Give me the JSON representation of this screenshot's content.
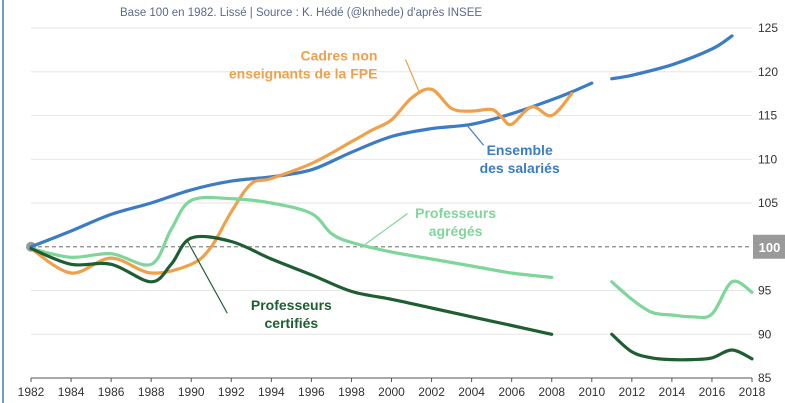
{
  "subtitle": "Base 100 en 1982. Lissé  |  Source : K. Hédé (@knhede) d'après INSEE",
  "colors": {
    "ensemble": "#3b7cc4",
    "cadres": "#f0a04b",
    "agreges": "#7fd69a",
    "certifies": "#1e5e32",
    "baseline": "#888888",
    "badge": "#9a9a9a"
  },
  "chart_data": {
    "type": "line",
    "title": "",
    "subtitle": "Base 100 en 1982. Lissé  |  Source : K. Hédé (@knhede) d'après INSEE",
    "xlabel": "",
    "ylabel": "",
    "xlim": [
      1982,
      2018
    ],
    "ylim": [
      85,
      125
    ],
    "x_ticks": [
      1982,
      1984,
      1986,
      1988,
      1990,
      1992,
      1994,
      1996,
      1998,
      2000,
      2002,
      2004,
      2006,
      2008,
      2010,
      2012,
      2014,
      2016,
      2018
    ],
    "y_ticks": [
      85,
      90,
      95,
      100,
      105,
      110,
      115,
      120,
      125
    ],
    "y_axis_side": "right",
    "baseline": {
      "value": 100,
      "label": "100"
    },
    "series": [
      {
        "name": "Ensemble des salariés",
        "label_lines": [
          "Ensemble",
          "des salariés"
        ],
        "segments": [
          [
            [
              1982,
              100
            ],
            [
              1984,
              101.8
            ],
            [
              1986,
              103.7
            ],
            [
              1988,
              105
            ],
            [
              1990,
              106.5
            ],
            [
              1992,
              107.5
            ],
            [
              1994,
              108
            ],
            [
              1996,
              108.8
            ],
            [
              1998,
              110.8
            ],
            [
              2000,
              112.6
            ],
            [
              2002,
              113.5
            ],
            [
              2004,
              114
            ],
            [
              2006,
              115.2
            ],
            [
              2008,
              116.8
            ],
            [
              2009,
              117.7
            ],
            [
              2010,
              118.7
            ]
          ],
          [
            [
              2011,
              119.2
            ],
            [
              2012,
              119.6
            ],
            [
              2014,
              120.8
            ],
            [
              2016,
              122.6
            ],
            [
              2017,
              124.1
            ]
          ]
        ]
      },
      {
        "name": "Cadres non enseignants de la FPE",
        "label_lines": [
          "Cadres non",
          "enseignants de la FPE"
        ],
        "segments": [
          [
            [
              1982,
              99.8
            ],
            [
              1984,
              97
            ],
            [
              1986,
              98.7
            ],
            [
              1988,
              97
            ],
            [
              1990,
              98
            ],
            [
              1991,
              100
            ],
            [
              1992,
              104
            ],
            [
              1993,
              107.2
            ],
            [
              1994,
              107.8
            ],
            [
              1996,
              109.5
            ],
            [
              1998,
              112
            ],
            [
              1999,
              113.3
            ],
            [
              2000,
              114.5
            ],
            [
              2001,
              117
            ],
            [
              2002,
              118
            ],
            [
              2003,
              115.8
            ],
            [
              2004,
              115.5
            ],
            [
              2005,
              115.7
            ],
            [
              2005.5,
              114.8
            ],
            [
              2006,
              114
            ],
            [
              2007,
              116
            ],
            [
              2008,
              115
            ],
            [
              2009,
              117.5
            ]
          ]
        ]
      },
      {
        "name": "Professeurs agrégés",
        "label_lines": [
          "Professeurs",
          "agrégés"
        ],
        "segments": [
          [
            [
              1982,
              99.8
            ],
            [
              1984,
              98.8
            ],
            [
              1986,
              99.2
            ],
            [
              1988,
              98
            ],
            [
              1989,
              102
            ],
            [
              1990,
              105.3
            ],
            [
              1992,
              105.5
            ],
            [
              1994,
              105
            ],
            [
              1996,
              103.8
            ],
            [
              1997,
              101.5
            ],
            [
              1998,
              100.5
            ],
            [
              2000,
              99.4
            ],
            [
              2002,
              98.6
            ],
            [
              2004,
              97.8
            ],
            [
              2006,
              97
            ],
            [
              2008,
              96.5
            ]
          ],
          [
            [
              2011,
              96
            ],
            [
              2012,
              94
            ],
            [
              2013,
              92.5
            ],
            [
              2014,
              92.2
            ],
            [
              2015,
              92
            ],
            [
              2016,
              92.3
            ],
            [
              2017,
              96
            ],
            [
              2018,
              94.8
            ]
          ]
        ]
      },
      {
        "name": "Professeurs certifiés",
        "label_lines": [
          "Professeurs",
          "certifiés"
        ],
        "segments": [
          [
            [
              1982,
              99.8
            ],
            [
              1984,
              98
            ],
            [
              1986,
              98
            ],
            [
              1988,
              96
            ],
            [
              1989,
              98
            ],
            [
              1990,
              101
            ],
            [
              1992,
              100.6
            ],
            [
              1994,
              98.6
            ],
            [
              1996,
              96.8
            ],
            [
              1998,
              94.9
            ],
            [
              2000,
              94
            ],
            [
              2002,
              93
            ],
            [
              2004,
              92
            ],
            [
              2006,
              91
            ],
            [
              2008,
              90
            ]
          ],
          [
            [
              2011,
              90
            ],
            [
              2012,
              88
            ],
            [
              2013,
              87.3
            ],
            [
              2014,
              87.1
            ],
            [
              2015,
              87.1
            ],
            [
              2016,
              87.3
            ],
            [
              2017,
              88.2
            ],
            [
              2018,
              87.2
            ]
          ]
        ]
      }
    ],
    "legend": "inline labels"
  }
}
